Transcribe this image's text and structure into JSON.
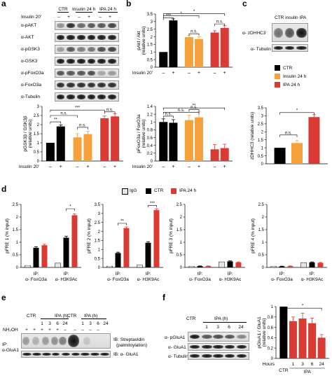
{
  "panels": {
    "a": "a",
    "b": "b",
    "c": "c",
    "d": "d",
    "e": "e",
    "f": "f"
  },
  "colors": {
    "ctr": "#000000",
    "insulin": "#f5a23c",
    "ipa": "#d93a34",
    "igg": "#e6e6e6"
  },
  "a_blot": {
    "head_ctr": "CTR",
    "head_ins": "Insulin 24 h",
    "head_ipa": "IPA 24 h",
    "row_label": "Insulin 20'",
    "signs": [
      "–",
      "+",
      "–",
      "+",
      "–",
      "+"
    ],
    "rows": [
      "α-pAKT",
      "α-AKT",
      "α-pGSK3",
      "α-GSK3",
      "α-pFoxO3a",
      "α-FoxO3a",
      "α-Tubulin"
    ]
  },
  "c_blot": {
    "head": "CTR insulin IPA",
    "rows": [
      "α- zDHHC3",
      "α- Tubulin"
    ]
  },
  "legend_top": {
    "items": [
      "CTR",
      "Insulin 24 h",
      "IPA 24 h"
    ]
  },
  "legend_d": {
    "items": [
      "IgG",
      "CTR",
      "IPA 24 h"
    ]
  },
  "insulin_label": "Insulin 20'",
  "e_blot": {
    "head_ctr1": "CTR",
    "head_ipa1": "IPA (h)",
    "head_ctr2": "CTR",
    "head_ipa2": "IPA (h)",
    "hours": [
      "1",
      "3",
      "6",
      "24",
      "1",
      "3",
      "6",
      "24"
    ],
    "nh2oh": "NH₂OH",
    "nh2oh_signs": [
      "+",
      "+",
      "+",
      "+",
      "+",
      "–",
      "–",
      "–",
      "–",
      "–"
    ],
    "ip": "IP:",
    "ip2": "α-GluA1",
    "ib1": "IB: Streptavidin",
    "ib1b": "(palmitoylation)",
    "ib2": "IB: α- GluA1"
  },
  "f_blot": {
    "head_ctr": "CTR",
    "head_ipa": "IPA (h)",
    "hours": [
      "1",
      "3",
      "6",
      "24"
    ],
    "rows": [
      "α- pGluA1",
      "α- GluA1",
      "α- Tubulin"
    ]
  },
  "chart_data": [
    {
      "id": "b_top",
      "type": "bar",
      "ylabel": "pAkt / Akt",
      "ylabel2": "(relative units)",
      "ylim": [
        0,
        3.5
      ],
      "yticks": [
        "0",
        "0.5",
        "1",
        "1.5",
        "2",
        "2.5",
        "3",
        "3.5"
      ],
      "signs": [
        "–",
        "+",
        "–",
        "+",
        "–",
        "+"
      ],
      "values": [
        1,
        3.08,
        1.98,
        1.85,
        2.28,
        2.58
      ],
      "errors": [
        0,
        0.1,
        0.1,
        0.15,
        0.12,
        0.15
      ],
      "groups": [
        "ctr",
        "ctr",
        "insulin",
        "insulin",
        "ipa",
        "ipa"
      ],
      "annotations": [
        {
          "type": "bracket",
          "from": 0,
          "to": 1,
          "level": 3.25,
          "text": "***"
        },
        {
          "type": "bracket",
          "from": 0,
          "to": 3,
          "level": 3.38,
          "text": "*"
        },
        {
          "type": "bracket",
          "from": 0,
          "to": 5,
          "level": 3.52,
          "text": "*"
        },
        {
          "type": "bracket",
          "from": 2,
          "to": 3,
          "level": 2.2,
          "text": "n.s."
        },
        {
          "type": "bracket",
          "from": 4,
          "to": 5,
          "level": 2.85,
          "text": "n.s."
        }
      ]
    },
    {
      "id": "a_bottom",
      "type": "bar",
      "ylabel": "pGSK3β / GSK3β",
      "ylabel2": "(relative units)",
      "ylim": [
        0,
        3
      ],
      "yticks": [
        "0",
        "0.5",
        "1",
        "1.5",
        "2",
        "2.5",
        "3"
      ],
      "signs": [
        "–",
        "+",
        "–",
        "+",
        "–",
        "+"
      ],
      "values": [
        1,
        1.9,
        1.3,
        1.48,
        2.35,
        2.45
      ],
      "errors": [
        0,
        0.08,
        0.2,
        0.15,
        0.12,
        0.15
      ],
      "groups": [
        "ctr",
        "ctr",
        "insulin",
        "insulin",
        "ipa",
        "ipa"
      ],
      "annotations": [
        {
          "type": "bracket",
          "from": 0,
          "to": 1,
          "level": 2.15,
          "text": "**"
        },
        {
          "type": "bracket",
          "from": 0,
          "to": 2,
          "level": 2.5,
          "text": "n.s."
        },
        {
          "type": "bracket",
          "from": 0,
          "to": 4,
          "level": 2.8,
          "text": "***"
        },
        {
          "type": "bracket",
          "from": 2,
          "to": 3,
          "level": 1.85,
          "text": "n.s."
        },
        {
          "type": "bracket",
          "from": 4,
          "to": 5,
          "level": 2.7,
          "text": "n.s."
        }
      ]
    },
    {
      "id": "b_bottom",
      "type": "bar",
      "ylabel": "pFoxO3a / FoxO3a",
      "ylabel2": "(relative units)",
      "ylim": [
        0,
        1.4
      ],
      "yticks": [
        "0",
        "0.2",
        "0.4",
        "0.6",
        "0.8",
        "1",
        "1.2",
        "1.4"
      ],
      "signs": [
        "–",
        "+",
        "–",
        "+",
        "–",
        "+"
      ],
      "values": [
        1,
        0.98,
        1.05,
        1.12,
        0.3,
        0.33
      ],
      "errors": [
        0.08,
        0.08,
        0.12,
        0.15,
        0.12,
        0.1
      ],
      "groups": [
        "ctr",
        "ctr",
        "insulin",
        "insulin",
        "ipa",
        "ipa"
      ],
      "annotations": [
        {
          "type": "bracket",
          "from": 0,
          "to": 1,
          "level": 1.15,
          "text": "n.s."
        },
        {
          "type": "bracket",
          "from": 0,
          "to": 3,
          "level": 1.25,
          "text": "n.s."
        },
        {
          "type": "bracket",
          "from": 0,
          "to": 5,
          "level": 1.36,
          "text": "**"
        },
        {
          "type": "bracket",
          "from": 2,
          "to": 3,
          "level": 1.32,
          "text": "n.s."
        }
      ]
    },
    {
      "id": "c_chart",
      "type": "bar",
      "ylabel": "zDHHC3 (relative units)",
      "ylim": [
        0,
        3.5
      ],
      "yticks": [
        "0",
        "0.5",
        "1",
        "1.5",
        "2",
        "2.5",
        "3",
        "3.5"
      ],
      "values": [
        1,
        1.3,
        2.92
      ],
      "errors": [
        0,
        0.15,
        0.15
      ],
      "groups": [
        "ctr",
        "insulin",
        "ipa"
      ],
      "annotations": [
        {
          "type": "bracket",
          "from": 0,
          "to": 1,
          "level": 1.8,
          "text": "n.s."
        },
        {
          "type": "bracket",
          "from": 0,
          "to": 2,
          "level": 3.2,
          "text": "*"
        }
      ]
    },
    {
      "id": "d1",
      "type": "bar",
      "ylabel": "pFRE 1 (% input)",
      "ylim": [
        0,
        2.5
      ],
      "yticks": [
        "0",
        "0.5",
        "1",
        "1.5",
        "2",
        "2.5"
      ],
      "xlabels": [
        [
          "IP:",
          "α- FoxO3a"
        ],
        [
          "IP:",
          "α- H3K9Ac"
        ]
      ],
      "values": [
        0.07,
        0.78,
        0.88,
        0.17,
        1.18,
        2.07
      ],
      "errors": [
        0.01,
        0.04,
        0.04,
        0.02,
        0.06,
        0.05
      ],
      "groups": [
        "igg",
        "ctr",
        "ipa",
        "igg",
        "ctr",
        "ipa"
      ],
      "annotations": [
        {
          "type": "bracket",
          "from": 4,
          "to": 5,
          "level": 2.33,
          "text": "*"
        }
      ]
    },
    {
      "id": "d2",
      "type": "bar",
      "ylabel": "pFRE 2 (% input)",
      "ylim": [
        0,
        3.5
      ],
      "yticks": [
        "0",
        "0.5",
        "1",
        "1.5",
        "2",
        "2.5",
        "3",
        "3.5"
      ],
      "xlabels": [
        [
          "IP:",
          "α- FoxO3a"
        ],
        [
          "IP:",
          "α- H3K9Ac"
        ]
      ],
      "values": [
        0.07,
        0.8,
        2.18,
        0.13,
        1.37,
        3.18
      ],
      "errors": [
        0.01,
        0.05,
        0.07,
        0.02,
        0.06,
        0.08
      ],
      "groups": [
        "igg",
        "ctr",
        "ipa",
        "igg",
        "ctr",
        "ipa"
      ],
      "annotations": [
        {
          "type": "bracket",
          "from": 1,
          "to": 2,
          "level": 2.45,
          "text": "**"
        },
        {
          "type": "bracket",
          "from": 4,
          "to": 5,
          "level": 3.45,
          "text": "***"
        }
      ]
    },
    {
      "id": "d3",
      "type": "bar",
      "ylabel": "pFRE 3 (% input)",
      "ylim": [
        0,
        2.5
      ],
      "yticks": [
        "0",
        "0.5",
        "1",
        "1.5",
        "2",
        "2.5"
      ],
      "xlabels": [
        [
          "IP:",
          "α- FoxO3a"
        ],
        [
          "IP:",
          "α- H3K9Ac"
        ]
      ],
      "values": [
        0.04,
        0.05,
        0.05,
        0.22,
        0.24,
        0.2
      ],
      "errors": [
        0.01,
        0.01,
        0.01,
        0.02,
        0.02,
        0.02
      ],
      "groups": [
        "igg",
        "ctr",
        "ipa",
        "igg",
        "ctr",
        "ipa"
      ],
      "annotations": []
    },
    {
      "id": "d4",
      "type": "bar",
      "ylabel": "pFRE 4 (% input)",
      "ylim": [
        0,
        2.5
      ],
      "yticks": [
        "0",
        "0.5",
        "1",
        "1.5",
        "2",
        "2.5"
      ],
      "xlabels": [
        [
          "IP:",
          "α- FoxO3a"
        ],
        [
          "IP:",
          "α- H3K9Ac"
        ]
      ],
      "values": [
        0.04,
        0.04,
        0.05,
        0.19,
        0.2,
        0.18
      ],
      "errors": [
        0.01,
        0.01,
        0.01,
        0.02,
        0.02,
        0.02
      ],
      "groups": [
        "igg",
        "ctr",
        "ipa",
        "igg",
        "ctr",
        "ipa"
      ],
      "annotations": []
    },
    {
      "id": "f_chart",
      "type": "bar",
      "ylabel": "pGluA1 / GluA1",
      "ylabel2": "(relative units)",
      "ylim": [
        0,
        1
      ],
      "yticks": [
        "0",
        "0.2",
        "0.4",
        "0.6",
        "0.8",
        "1"
      ],
      "xrow_label": "Hours",
      "categories": [
        "",
        "1",
        "3",
        "6",
        "24"
      ],
      "group_labels": [
        "CTR",
        "IPA"
      ],
      "values": [
        1,
        0.72,
        0.77,
        0.68,
        0.4
      ],
      "errors": [
        0,
        0.08,
        0.1,
        0.1,
        0.06
      ],
      "groups": [
        "ctr",
        "ipa",
        "ipa",
        "ipa",
        "ipa"
      ],
      "annotations": [
        {
          "type": "bracket",
          "from": 0,
          "to": 4,
          "level": 0.97,
          "text": "*"
        }
      ]
    }
  ]
}
